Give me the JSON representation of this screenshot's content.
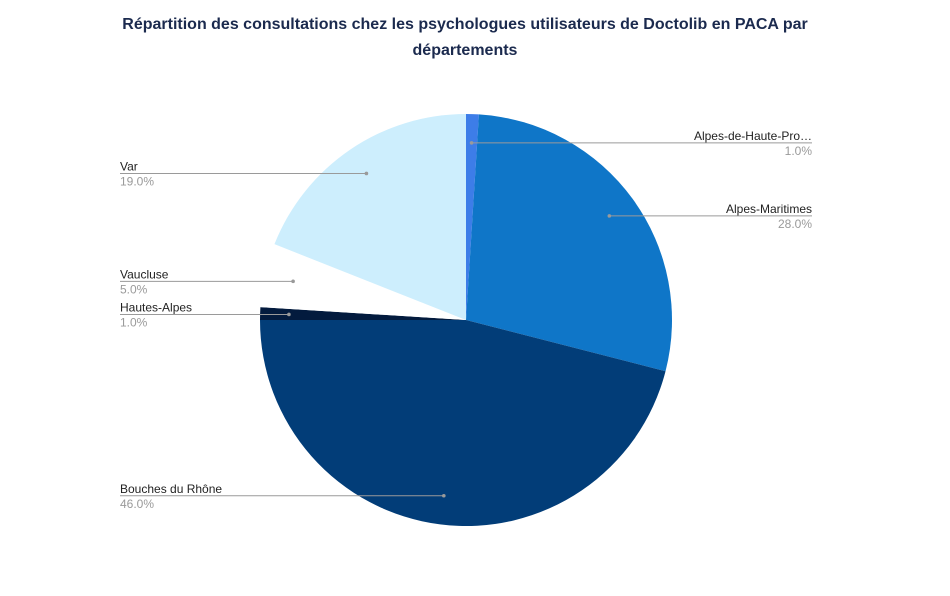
{
  "chart_data": {
    "type": "pie",
    "title": "Répartition des consultations chez les psychologues utilisateurs de Doctolib en PACA par départements",
    "start_angle_deg": 0,
    "slices": [
      {
        "name": "Alpes-de-Haute-Provence",
        "label": "Alpes-de-Haute-Pro…",
        "pct_label": "1.0%",
        "value": 1.0,
        "color": "#3d7de8",
        "side": "right"
      },
      {
        "name": "Alpes-Maritimes",
        "label": "Alpes-Maritimes",
        "pct_label": "28.0%",
        "value": 28.0,
        "color": "#0f76c8",
        "side": "right"
      },
      {
        "name": "Bouches du Rhône",
        "label": "Bouches du Rhône",
        "pct_label": "46.0%",
        "value": 46.0,
        "color": "#023d78",
        "side": "left"
      },
      {
        "name": "Hautes-Alpes",
        "label": "Hautes-Alpes",
        "pct_label": "1.0%",
        "value": 1.0,
        "color": "#031b3e",
        "side": "left"
      },
      {
        "name": "Vaucluse",
        "label": "Vaucluse",
        "pct_label": "5.0%",
        "value": 5.0,
        "color": "#ffffff",
        "side": "left"
      },
      {
        "name": "Var",
        "label": "Var",
        "pct_label": "19.0%",
        "value": 19.0,
        "color": "#cdeefd",
        "side": "left"
      }
    ]
  }
}
